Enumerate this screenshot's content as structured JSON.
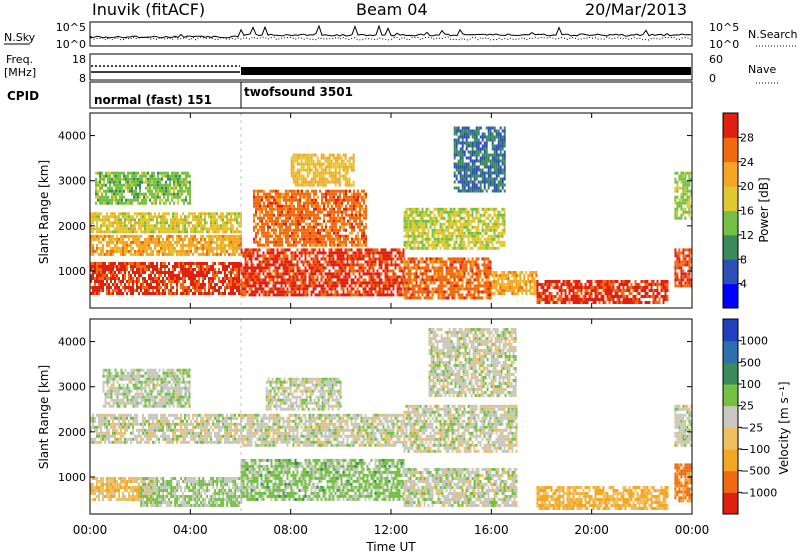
{
  "header": {
    "station": "Inuvik (fitACF)",
    "beam": "Beam 04",
    "date": "20/Mar/2013"
  },
  "noise_panel": {
    "left_label": "N.Sky",
    "right_label": "N.Search",
    "left_ticks": [
      "10^5",
      "10^0"
    ],
    "right_ticks": [
      "10^5",
      "10^0"
    ]
  },
  "freq_panel": {
    "left_label_line1": "Freq.",
    "left_label_line2": "[MHz]",
    "left_ticks": [
      "18",
      "8"
    ],
    "right_ticks": [
      "60",
      "0"
    ],
    "right_label": "Nave"
  },
  "cpid_panel": {
    "label": "CPID",
    "modes": [
      "normal (fast) 151",
      "twofsound 3501"
    ],
    "mode_start_hours": [
      0,
      6
    ]
  },
  "chart_data": [
    {
      "type": "heatmap",
      "title": "",
      "xlabel": "",
      "ylabel": "Slant Range [km]",
      "x_range_hours": [
        0,
        24
      ],
      "ylim": [
        180,
        4500
      ],
      "yticks": [
        1000,
        2000,
        3000,
        4000
      ],
      "colorbar": {
        "label": "Power [dB]",
        "ticks": [
          "28",
          "24",
          "20",
          "16",
          "12",
          "8",
          "4"
        ],
        "colors": [
          "#0000ff",
          "#2e4fb8",
          "#3a8a5a",
          "#74c043",
          "#e0c830",
          "#f5a623",
          "#f06a10",
          "#e02010"
        ],
        "range": [
          0,
          32
        ]
      },
      "echo_bands": [
        {
          "t0": 0.0,
          "t1": 6.0,
          "r0": 500,
          "r1": 1200,
          "level": 29
        },
        {
          "t0": 0.0,
          "t1": 6.0,
          "r0": 1350,
          "r1": 1800,
          "level": 22
        },
        {
          "t0": 0.0,
          "t1": 6.0,
          "r0": 1900,
          "r1": 2300,
          "level": 18
        },
        {
          "t0": 0.2,
          "t1": 4.0,
          "r0": 2500,
          "r1": 3200,
          "level": 14
        },
        {
          "t0": 6.0,
          "t1": 12.5,
          "r0": 500,
          "r1": 1500,
          "level": 29
        },
        {
          "t0": 6.5,
          "t1": 11.0,
          "r0": 1600,
          "r1": 2800,
          "level": 26
        },
        {
          "t0": 8.0,
          "t1": 10.5,
          "r0": 2900,
          "r1": 3600,
          "level": 20
        },
        {
          "t0": 12.5,
          "t1": 16.0,
          "r0": 400,
          "r1": 1300,
          "level": 26
        },
        {
          "t0": 12.5,
          "t1": 16.5,
          "r0": 1500,
          "r1": 2400,
          "level": 17
        },
        {
          "t0": 14.5,
          "t1": 16.5,
          "r0": 2800,
          "r1": 4200,
          "level": 8
        },
        {
          "t0": 16.0,
          "t1": 17.8,
          "r0": 500,
          "r1": 1000,
          "level": 22
        },
        {
          "t0": 17.8,
          "t1": 23.0,
          "r0": 300,
          "r1": 800,
          "level": 29
        },
        {
          "t0": 23.3,
          "t1": 24.0,
          "r0": 700,
          "r1": 1500,
          "level": 27
        },
        {
          "t0": 23.3,
          "t1": 24.0,
          "r0": 2200,
          "r1": 3200,
          "level": 15
        }
      ]
    },
    {
      "type": "heatmap",
      "title": "",
      "xlabel": "Time UT",
      "ylabel": "Slant Range [km]",
      "x_range_hours": [
        0,
        24
      ],
      "xticks": [
        "00:00",
        "04:00",
        "08:00",
        "12:00",
        "16:00",
        "20:00",
        "00:00"
      ],
      "ylim": [
        180,
        4500
      ],
      "yticks": [
        1000,
        2000,
        3000,
        4000
      ],
      "colorbar": {
        "label": "Velocity [m s⁻¹]",
        "ticks": [
          "1000",
          "500",
          "100",
          "25",
          "−25",
          "−100",
          "−500",
          "−1000"
        ],
        "colors": [
          "#e02010",
          "#f06a10",
          "#f5a623",
          "#f0c060",
          "#c8c8c0",
          "#74c043",
          "#3a8a5a",
          "#2e6fb0",
          "#2040c0"
        ],
        "range": [
          -1200,
          1200
        ]
      },
      "echo_bands": [
        {
          "t0": 0.0,
          "t1": 2.5,
          "r0": 500,
          "r1": 1000,
          "level": -300
        },
        {
          "t0": 2.0,
          "t1": 6.0,
          "r0": 400,
          "r1": 1000,
          "level": 150
        },
        {
          "t0": 0.0,
          "t1": 6.0,
          "r0": 1800,
          "r1": 2400,
          "level": 0
        },
        {
          "t0": 0.5,
          "t1": 4.0,
          "r0": 2600,
          "r1": 3400,
          "level": 60
        },
        {
          "t0": 6.0,
          "t1": 12.5,
          "r0": 500,
          "r1": 1400,
          "level": 200
        },
        {
          "t0": 6.0,
          "t1": 12.5,
          "r0": 1700,
          "r1": 2400,
          "level": 0
        },
        {
          "t0": 7.0,
          "t1": 10.0,
          "r0": 2500,
          "r1": 3200,
          "level": 20
        },
        {
          "t0": 12.5,
          "t1": 17.0,
          "r0": 400,
          "r1": 1200,
          "level": 10
        },
        {
          "t0": 12.5,
          "t1": 17.0,
          "r0": 1600,
          "r1": 2600,
          "level": 0
        },
        {
          "t0": 13.5,
          "t1": 17.0,
          "r0": 2800,
          "r1": 4300,
          "level": 5
        },
        {
          "t0": 17.8,
          "t1": 23.0,
          "r0": 300,
          "r1": 800,
          "level": -400
        },
        {
          "t0": 23.3,
          "t1": 24.0,
          "r0": 500,
          "r1": 1300,
          "level": -700
        },
        {
          "t0": 23.3,
          "t1": 24.0,
          "r0": 1700,
          "r1": 2600,
          "level": 0
        }
      ]
    }
  ]
}
